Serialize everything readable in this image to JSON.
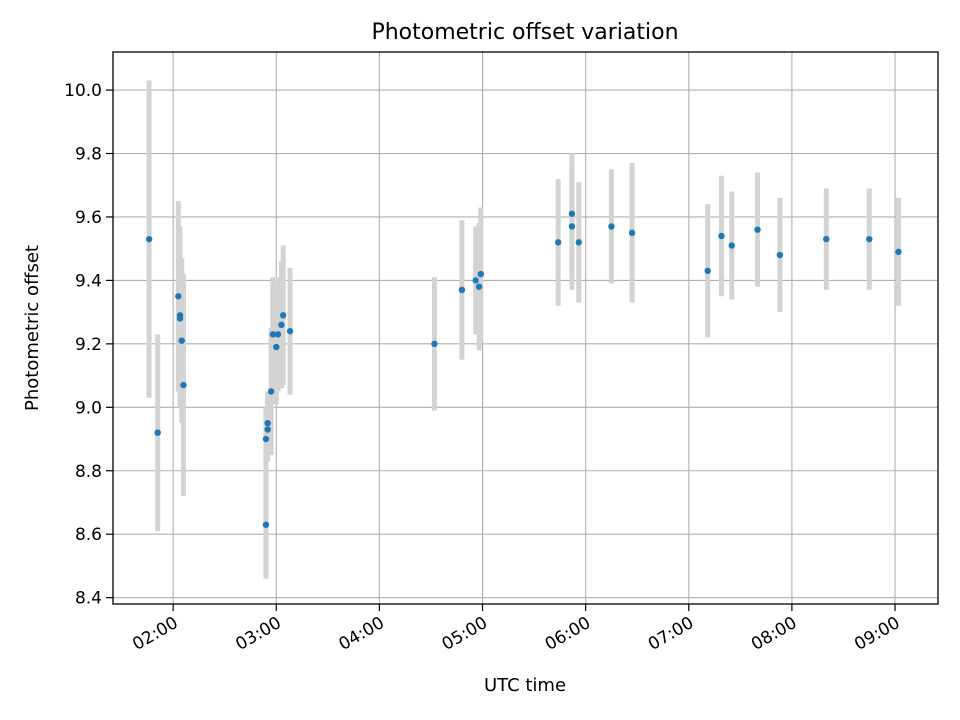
{
  "chart_data": {
    "type": "scatter",
    "title": "Photometric offset variation",
    "xlabel": "UTC time",
    "ylabel": "Photometric offset",
    "x_unit": "hours (UTC)",
    "xlim": [
      "01:25",
      "09:25"
    ],
    "ylim": [
      8.38,
      10.12
    ],
    "x_ticks": [
      "02:00",
      "03:00",
      "04:00",
      "05:00",
      "06:00",
      "07:00",
      "08:00",
      "09:00"
    ],
    "y_ticks": [
      "8.4",
      "8.6",
      "8.8",
      "9.0",
      "9.2",
      "9.4",
      "9.6",
      "9.8",
      "10.0"
    ],
    "grid": true,
    "colors": {
      "marker": "#1f77b4",
      "errorbar": "#d3d3d3",
      "grid": "#b0b0b0"
    },
    "series": [
      {
        "points": [
          {
            "t": "01:46",
            "y": 9.53,
            "err": 0.5
          },
          {
            "t": "01:51",
            "y": 8.92,
            "err": 0.31
          },
          {
            "t": "02:03",
            "y": 9.35,
            "err": 0.3
          },
          {
            "t": "02:04",
            "y": 9.28,
            "err": 0.28
          },
          {
            "t": "02:04",
            "y": 9.29,
            "err": 0.28
          },
          {
            "t": "02:05",
            "y": 9.21,
            "err": 0.26
          },
          {
            "t": "02:06",
            "y": 9.07,
            "err": 0.35
          },
          {
            "t": "02:54",
            "y": 8.63,
            "err": 0.17
          },
          {
            "t": "02:54",
            "y": 8.9,
            "err": 0.1
          },
          {
            "t": "02:55",
            "y": 8.93,
            "err": 0.1
          },
          {
            "t": "02:55",
            "y": 8.95,
            "err": 0.1
          },
          {
            "t": "02:57",
            "y": 9.05,
            "err": 0.2
          },
          {
            "t": "02:58",
            "y": 9.23,
            "err": 0.18
          },
          {
            "t": "03:00",
            "y": 9.19,
            "err": 0.18
          },
          {
            "t": "03:01",
            "y": 9.23,
            "err": 0.18
          },
          {
            "t": "03:03",
            "y": 9.26,
            "err": 0.2
          },
          {
            "t": "03:04",
            "y": 9.29,
            "err": 0.22
          },
          {
            "t": "03:08",
            "y": 9.24,
            "err": 0.2
          },
          {
            "t": "04:32",
            "y": 9.2,
            "err": 0.21
          },
          {
            "t": "04:48",
            "y": 9.37,
            "err": 0.22
          },
          {
            "t": "04:56",
            "y": 9.4,
            "err": 0.17
          },
          {
            "t": "04:58",
            "y": 9.38,
            "err": 0.2
          },
          {
            "t": "04:59",
            "y": 9.42,
            "err": 0.21
          },
          {
            "t": "05:44",
            "y": 9.52,
            "err": 0.2
          },
          {
            "t": "05:52",
            "y": 9.61,
            "err": 0.19
          },
          {
            "t": "05:52",
            "y": 9.57,
            "err": 0.2
          },
          {
            "t": "05:56",
            "y": 9.52,
            "err": 0.19
          },
          {
            "t": "06:15",
            "y": 9.57,
            "err": 0.18
          },
          {
            "t": "06:27",
            "y": 9.55,
            "err": 0.22
          },
          {
            "t": "07:11",
            "y": 9.43,
            "err": 0.21
          },
          {
            "t": "07:19",
            "y": 9.54,
            "err": 0.19
          },
          {
            "t": "07:25",
            "y": 9.51,
            "err": 0.17
          },
          {
            "t": "07:40",
            "y": 9.56,
            "err": 0.18
          },
          {
            "t": "07:53",
            "y": 9.48,
            "err": 0.18
          },
          {
            "t": "08:20",
            "y": 9.53,
            "err": 0.16
          },
          {
            "t": "08:45",
            "y": 9.53,
            "err": 0.16
          },
          {
            "t": "09:02",
            "y": 9.49,
            "err": 0.17
          }
        ]
      }
    ]
  }
}
